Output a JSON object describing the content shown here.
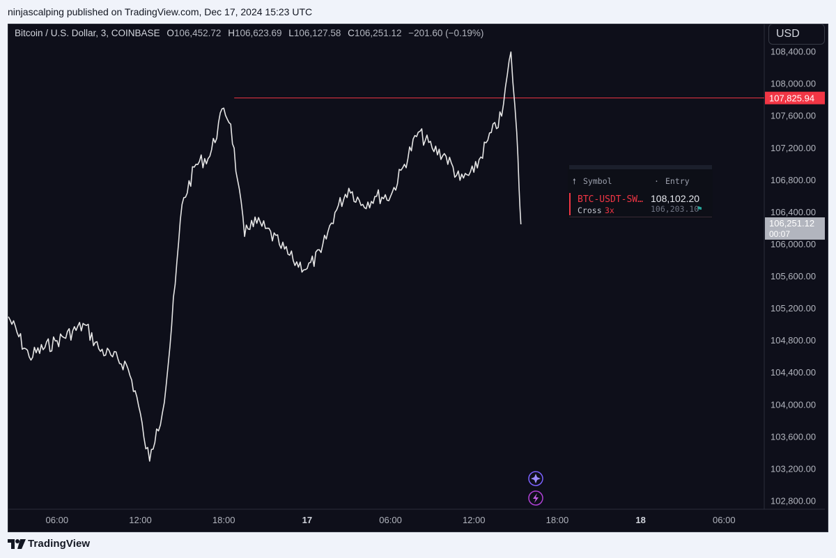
{
  "header": {
    "published": "ninjascalping published on TradingView.com, Dec 17, 2024 15:23 UTC"
  },
  "legend": {
    "symbol": "Bitcoin / U.S. Dollar, 3, COINBASE",
    "o_label": "O",
    "o_value": "106,452.72",
    "h_label": "H",
    "h_value": "106,623.69",
    "l_label": "L",
    "l_value": "106,127.58",
    "c_label": "C",
    "c_value": "106,251.12",
    "change": "−201.60 (−0.19%)"
  },
  "currency_button": "USD",
  "footer": {
    "brand": "TradingView"
  },
  "position_panel": {
    "col_symbol": "Symbol",
    "col_entry": "Entry",
    "symbol": "BTC-USDT-SW…",
    "entry": "108,102.20",
    "margin_mode": "Cross",
    "leverage": "3x",
    "mark": "106,203.10"
  },
  "colors": {
    "background": "#0e0f1a",
    "line": "#e6e6e6",
    "level_line": "#f23645",
    "price_tag": "#b2b5be",
    "accent_purple": "#7b61ff"
  },
  "icons": [
    "sparkle-icon",
    "lightning-icon",
    "flag-icon",
    "tradingview-logo"
  ],
  "chart_data": {
    "type": "line",
    "title": "Bitcoin / U.S. Dollar, 3, COINBASE",
    "x": [
      "Dec 16 02:30",
      "Dec 16 04:00",
      "Dec 16 06:00",
      "Dec 16 08:00",
      "Dec 16 09:00",
      "Dec 16 10:00",
      "Dec 16 11:00",
      "Dec 16 11:45",
      "Dec 16 12:15",
      "Dec 16 12:40",
      "Dec 16 13:10",
      "Dec 16 13:35",
      "Dec 16 14:00",
      "Dec 16 14:30",
      "Dec 16 15:00",
      "Dec 16 16:00",
      "Dec 16 17:00",
      "Dec 16 18:00",
      "Dec 16 18:30",
      "Dec 16 19:00",
      "Dec 16 19:30",
      "Dec 16 20:00",
      "Dec 16 21:00",
      "Dec 16 22:00",
      "Dec 16 23:00",
      "Dec 17 00:00",
      "Dec 17 01:00",
      "Dec 17 02:00",
      "Dec 17 03:00",
      "Dec 17 04:00",
      "Dec 17 05:00",
      "Dec 17 06:00",
      "Dec 17 07:00",
      "Dec 17 08:00",
      "Dec 17 09:00",
      "Dec 17 10:00",
      "Dec 17 11:00",
      "Dec 17 12:00",
      "Dec 17 13:00",
      "Dec 17 14:00",
      "Dec 17 14:40",
      "Dec 17 15:05",
      "Dec 17 15:15",
      "Dec 17 15:23"
    ],
    "values": [
      105100,
      104600,
      104800,
      105000,
      104700,
      104600,
      104500,
      104100,
      103600,
      103300,
      103700,
      103900,
      104500,
      105500,
      106500,
      107000,
      107100,
      107700,
      107500,
      106800,
      106100,
      106300,
      106200,
      106000,
      105800,
      105700,
      105900,
      106400,
      106700,
      106500,
      106600,
      106600,
      107000,
      107400,
      107200,
      107100,
      106800,
      106900,
      107300,
      107600,
      108400,
      107400,
      106700,
      106251.12
    ],
    "ylim": [
      102700,
      108700
    ],
    "y_ticks": [
      "102,800.00",
      "103,200.00",
      "103,600.00",
      "104,000.00",
      "104,400.00",
      "104,800.00",
      "105,200.00",
      "105,600.00",
      "106,000.00",
      "106,400.00",
      "106,800.00",
      "107,200.00",
      "107,600.00",
      "108,000.00",
      "108,400.00"
    ],
    "x_ticks": [
      "06:00",
      "12:00",
      "18:00",
      "17",
      "06:00",
      "12:00",
      "18:00",
      "18",
      "06:00"
    ],
    "level_line": {
      "value": 107825.94,
      "label": "107,825.94"
    },
    "last_price": {
      "value": 106251.12,
      "label": "106,251.12",
      "countdown": "00:07"
    }
  }
}
